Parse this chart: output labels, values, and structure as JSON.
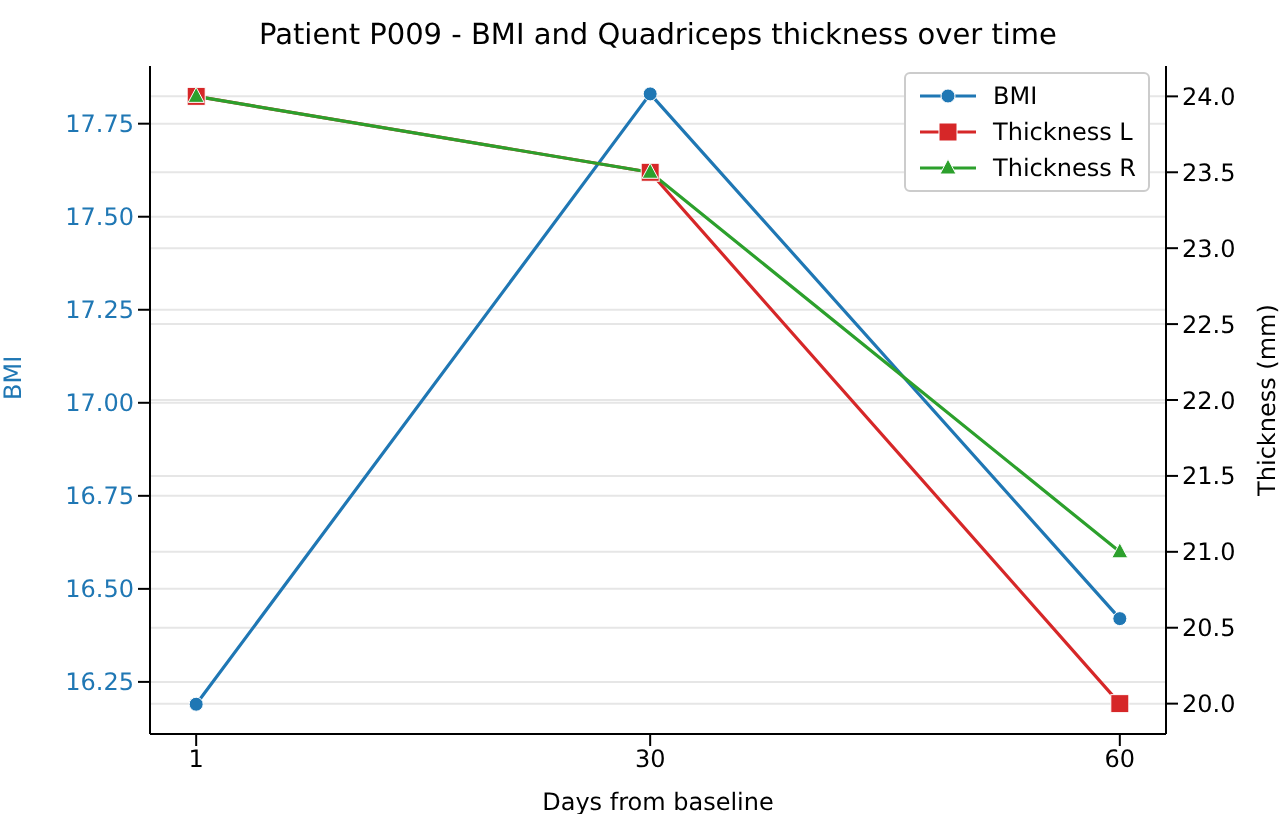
{
  "chart_data": {
    "type": "line",
    "title": "Patient P009 - BMI and Quadriceps thickness over time",
    "xlabel": "Days from baseline",
    "ylabel": "BMI",
    "y2label": "Thickness (mm)",
    "x": [
      1,
      30,
      60
    ],
    "xlim": [
      -1.95,
      62.95
    ],
    "xticks": [
      1,
      30,
      60
    ],
    "ylim": [
      16.11,
      17.905
    ],
    "yticks": [
      {
        "value": 16.25,
        "label": "16.25"
      },
      {
        "value": 16.5,
        "label": "16.50"
      },
      {
        "value": 16.75,
        "label": "16.75"
      },
      {
        "value": 17,
        "label": "17.00"
      },
      {
        "value": 17.25,
        "label": "17.25"
      },
      {
        "value": 17.5,
        "label": "17.50"
      },
      {
        "value": 17.75,
        "label": "17.75"
      }
    ],
    "y2lim": [
      19.8,
      24.2
    ],
    "y2ticks": [
      {
        "value": 20,
        "label": "20.0"
      },
      {
        "value": 20.5,
        "label": "20.5"
      },
      {
        "value": 21,
        "label": "21.0"
      },
      {
        "value": 21.5,
        "label": "21.5"
      },
      {
        "value": 22,
        "label": "22.0"
      },
      {
        "value": 22.5,
        "label": "22.5"
      },
      {
        "value": 23,
        "label": "23.0"
      },
      {
        "value": 23.5,
        "label": "23.5"
      },
      {
        "value": 24,
        "label": "24.0"
      }
    ],
    "grid": "y",
    "legend": "top right",
    "line_style": "solid",
    "series": [
      {
        "name": "BMI",
        "color": "#1f77b4",
        "values": [
          16.19,
          17.83,
          16.42
        ],
        "marker": "circle"
      },
      {
        "name": "Thickness L",
        "color": "#d62728",
        "values": [
          24.0,
          23.5,
          20.0
        ],
        "axis": "y2",
        "marker": "square"
      },
      {
        "name": "Thickness R",
        "color": "#2ca02c",
        "values": [
          24.0,
          23.5,
          21.0
        ],
        "axis": "y2",
        "marker": "triangle"
      }
    ]
  }
}
